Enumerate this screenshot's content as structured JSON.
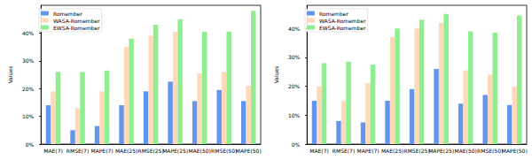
{
  "chart_data": [
    {
      "type": "bar",
      "ylabel": "Values",
      "categories": [
        "MAE(7)",
        "RMSE(7)",
        "MAPE(7)",
        "MAE(25)",
        "RMSE(25)",
        "MAPE(25)",
        "MAE(50)",
        "RMSE(50)",
        "MAPE(50)"
      ],
      "series": [
        {
          "name": "Romember",
          "color": "#6495ed",
          "values": [
            14,
            5,
            6.5,
            14,
            19,
            22.5,
            15.5,
            19.5,
            15.5
          ]
        },
        {
          "name": "WASA-Romember",
          "color": "#ffdab9",
          "values": [
            19,
            13,
            19,
            35,
            39,
            40.5,
            25.5,
            26,
            21
          ]
        },
        {
          "name": "EWSA-Romember",
          "color": "#90ee90",
          "values": [
            26,
            26,
            26.5,
            38,
            43,
            45,
            40.5,
            40.5,
            48
          ]
        }
      ],
      "ylim": [
        0,
        50
      ],
      "yticks": [
        {
          "value": 0,
          "label": "0%"
        },
        {
          "value": 10,
          "label": "10%"
        },
        {
          "value": 20,
          "label": "20%"
        },
        {
          "value": 30,
          "label": "30%"
        },
        {
          "value": 40,
          "label": "40%"
        }
      ],
      "grid": false,
      "legend": "upper left"
    },
    {
      "type": "bar",
      "ylabel": "Values",
      "categories": [
        "MAE(7)",
        "RMSE(7)",
        "MAPE(7)",
        "MAE(25)",
        "RMSE(25)",
        "MAPE(25)",
        "MAE(50)",
        "RMSE(50)",
        "MAPE(50)"
      ],
      "series": [
        {
          "name": "Romember",
          "color": "#6495ed",
          "values": [
            15,
            8,
            7.5,
            15,
            19,
            26,
            14,
            17,
            13.5
          ]
        },
        {
          "name": "WASA-Romember",
          "color": "#ffdab9",
          "values": [
            20,
            15,
            21,
            37,
            40,
            42,
            25.5,
            24,
            20
          ]
        },
        {
          "name": "EWSA-Romember",
          "color": "#90ee90",
          "values": [
            28,
            28.5,
            27.5,
            40,
            43,
            45,
            39,
            38.5,
            44.5
          ]
        }
      ],
      "ylim": [
        0,
        48
      ],
      "yticks": [
        {
          "value": 0,
          "label": "0%"
        },
        {
          "value": 10,
          "label": "10%"
        },
        {
          "value": 20,
          "label": "20%"
        },
        {
          "value": 30,
          "label": "30%"
        },
        {
          "value": 40,
          "label": "40%"
        }
      ],
      "grid": false,
      "legend": "upper left"
    }
  ]
}
